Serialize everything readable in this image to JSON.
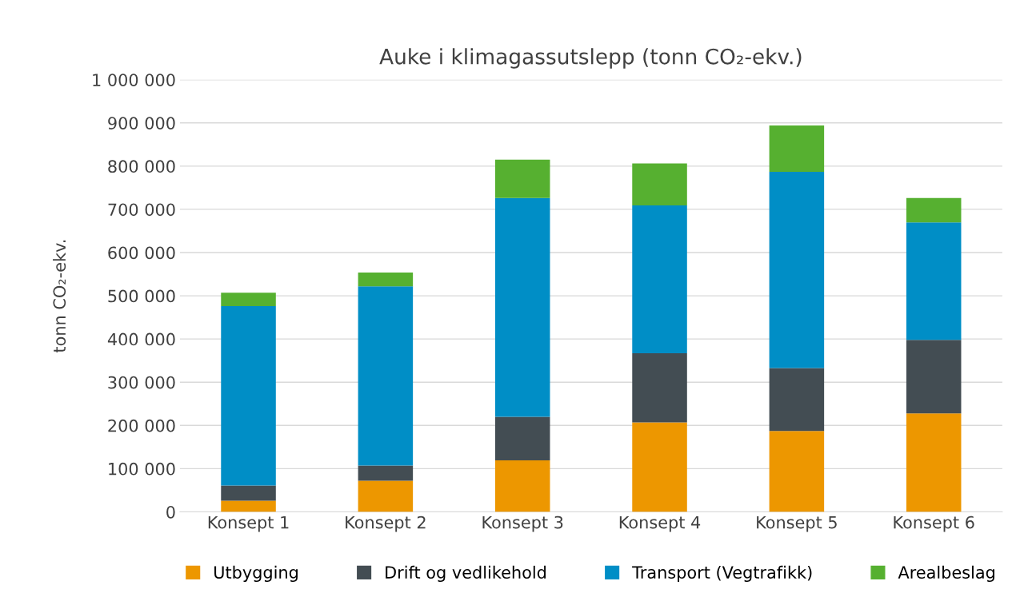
{
  "chart_data": {
    "type": "bar",
    "stacked": true,
    "title": "Auke i klimagassutslepp (tonn CO₂-ekv.)",
    "ylabel": "tonn CO₂-ekv.",
    "categories": [
      "Konsept 1",
      "Konsept 2",
      "Konsept 3",
      "Konsept 4",
      "Konsept 5",
      "Konsept 6"
    ],
    "series": [
      {
        "name": "Utbygging",
        "color": "#ed9700",
        "values": [
          26000,
          72000,
          119000,
          207000,
          187000,
          228000
        ]
      },
      {
        "name": "Drift og vedlikehold",
        "color": "#434d53",
        "values": [
          35000,
          35000,
          101000,
          160000,
          146000,
          170000
        ]
      },
      {
        "name": "Transport (Vegtrafikk)",
        "color": "#008ec6",
        "values": [
          415000,
          415000,
          506000,
          342000,
          454000,
          272000
        ]
      },
      {
        "name": "Arealbeslag",
        "color": "#56b030",
        "values": [
          31000,
          32000,
          89000,
          97000,
          107000,
          56000
        ]
      }
    ],
    "ylim": [
      0,
      1000000
    ],
    "yticks": [
      0,
      {
        "value": 100000,
        "label": "100 000"
      },
      {
        "value": 200000,
        "label": "200 000"
      },
      {
        "value": 300000,
        "label": "300 000"
      },
      {
        "value": 400000,
        "label": "400 000"
      },
      {
        "value": 500000,
        "label": "500 000"
      },
      {
        "value": 600000,
        "label": "600 000"
      },
      {
        "value": 700000,
        "label": "700 000"
      },
      {
        "value": 800000,
        "label": "800 000"
      },
      {
        "value": 900000,
        "label": "900 000"
      },
      {
        "value": 1000000,
        "label": "1 000 000"
      }
    ],
    "grid": "y",
    "legend": "bottom"
  }
}
